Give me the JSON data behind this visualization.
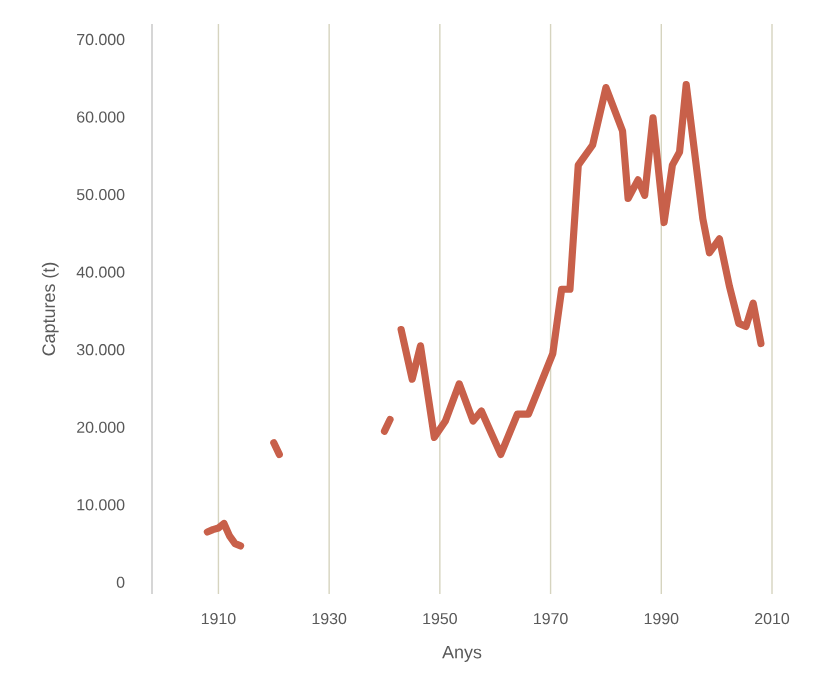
{
  "chart_data": {
    "type": "line",
    "xlabel": "Anys",
    "ylabel": "Captures (t)",
    "x": [
      1908,
      1909,
      1910,
      1911,
      1912,
      1913,
      1914,
      1917,
      1920,
      1921,
      1930,
      1940,
      1941,
      1942,
      1943,
      1945,
      1946.5,
      1949,
      1951,
      1953.5,
      1956,
      1957.5,
      1961,
      1964,
      1966,
      1970.4,
      1972,
      1973.5,
      1975,
      1977.6,
      1980,
      1983,
      1984,
      1985.8,
      1987,
      1988.5,
      1990.5,
      1992,
      1993.3,
      1994.5,
      1997.5,
      1998.7,
      2000.5,
      2002.3,
      2004,
      2005.3,
      2006.6,
      2008
    ],
    "series": [
      {
        "color": "#c8604a",
        "values": [
          6500,
          6800,
          7000,
          7600,
          6000,
          5000,
          4700,
          null,
          18000,
          16500,
          null,
          19500,
          21000,
          null,
          32600,
          26200,
          30500,
          18700,
          20800,
          25600,
          20800,
          22100,
          16500,
          21700,
          21700,
          29500,
          37800,
          37800,
          53800,
          56400,
          63800,
          58200,
          49500,
          51900,
          49900,
          59900,
          46400,
          53800,
          55500,
          64200,
          46900,
          42500,
          44300,
          38200,
          33400,
          33000,
          36000,
          30800
        ]
      }
    ],
    "xlim": [
      1898,
      2010
    ],
    "ylim": [
      -1500,
      72000
    ],
    "xticks": [
      1910,
      1930,
      1950,
      1970,
      1990,
      2010
    ],
    "yticks": [
      {
        "value": 0,
        "label": "0"
      },
      {
        "value": 10000,
        "label": "10.000"
      },
      {
        "value": 20000,
        "label": "20.000"
      },
      {
        "value": 30000,
        "label": "30.000"
      },
      {
        "value": 40000,
        "label": "40.000"
      },
      {
        "value": 50000,
        "label": "50.000"
      },
      {
        "value": 60000,
        "label": "60.000"
      },
      {
        "value": 70000,
        "label": "70.000"
      }
    ],
    "grid": "x",
    "marker": "none",
    "line_style": "solid"
  }
}
